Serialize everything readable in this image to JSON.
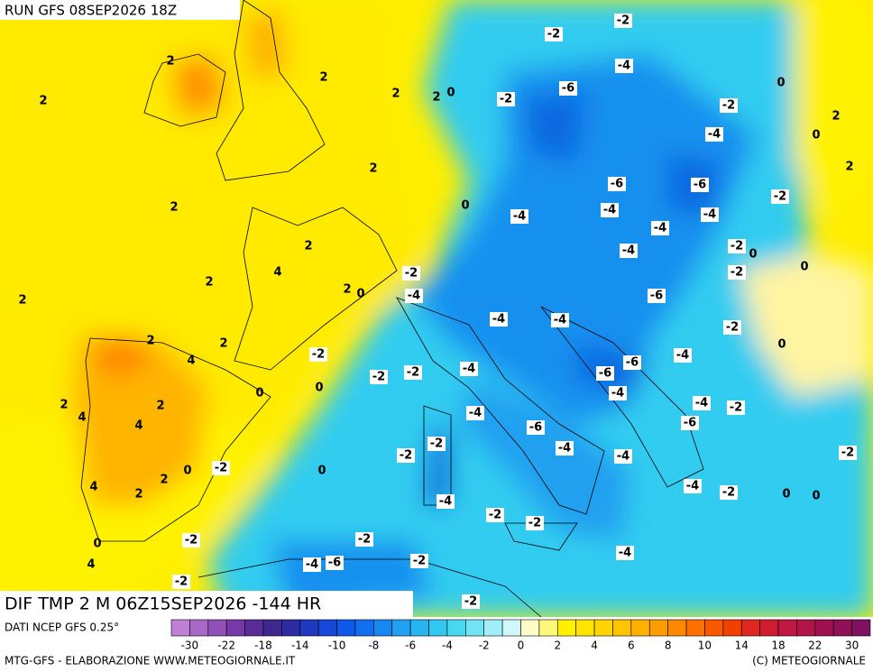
{
  "header": {
    "run": "RUN GFS 08SEP2026 18Z",
    "field": "DIF TMP 2 M 06Z15SEP2026 -144 HR"
  },
  "map": {
    "labels": [
      "-2",
      "-2",
      "-4",
      "-6",
      "-2",
      "2",
      "2",
      "2",
      "2",
      "0",
      "2",
      "0",
      "-2",
      "2",
      "0",
      "-4",
      "2",
      "2",
      "-6",
      "-6",
      "-2",
      "2",
      "0",
      "-4",
      "-4",
      "-4",
      "-4",
      "-2",
      "0",
      "2",
      "0",
      "-4",
      "-2",
      "4",
      "-2",
      "2",
      "2",
      "0",
      "2",
      "-4",
      "-6",
      "-4",
      "-4",
      "-2",
      "2",
      "2",
      "0",
      "-2",
      "-4",
      "4",
      "-6",
      "-4",
      "-2",
      "-2",
      "-6",
      "0",
      "-4",
      "0",
      "-4",
      "2",
      "2",
      "-2",
      "4",
      "-4",
      "-6",
      "4",
      "-6",
      "-2",
      "-4",
      "-4",
      "-2",
      "-2",
      "0",
      "-2",
      "0",
      "2",
      "4",
      "-4",
      "-2",
      "2",
      "0",
      "0",
      "-4",
      "-2",
      "-2",
      "0",
      "-2",
      "-2",
      "-4",
      "4",
      "-4",
      "-6",
      "-2",
      "-2",
      "-2"
    ]
  },
  "legend": {
    "source": "DATI NCEP GFS 0.25°",
    "colors": [
      "#c080d8",
      "#a868c8",
      "#9050b8",
      "#7838a8",
      "#582c98",
      "#3c2890",
      "#2c2ca0",
      "#2038c0",
      "#1848d8",
      "#1058e8",
      "#1070f0",
      "#1888f0",
      "#20a0f0",
      "#28b4f0",
      "#30c8f0",
      "#48d8f0",
      "#70e4f4",
      "#a0eef8",
      "#d0f8fc",
      "#fffcc8",
      "#fff878",
      "#fff000",
      "#ffe400",
      "#ffd400",
      "#ffc400",
      "#ffb000",
      "#ff9c00",
      "#ff8800",
      "#ff7000",
      "#f85800",
      "#f04000",
      "#e02820",
      "#d01c30",
      "#c01840",
      "#b01448",
      "#a01050",
      "#901058",
      "#801060"
    ],
    "labels": [
      "-30",
      "-22",
      "-18",
      "-14",
      "-10",
      "-8",
      "-6",
      "-4",
      "-2",
      "0",
      "2",
      "4",
      "6",
      "8",
      "10",
      "14",
      "18",
      "22",
      "30"
    ]
  },
  "footer": {
    "left": "MTG-GFS - ELABORAZIONE WWW.METEOGIORNALE.IT",
    "right": "(C) METEOGIORNALE"
  }
}
